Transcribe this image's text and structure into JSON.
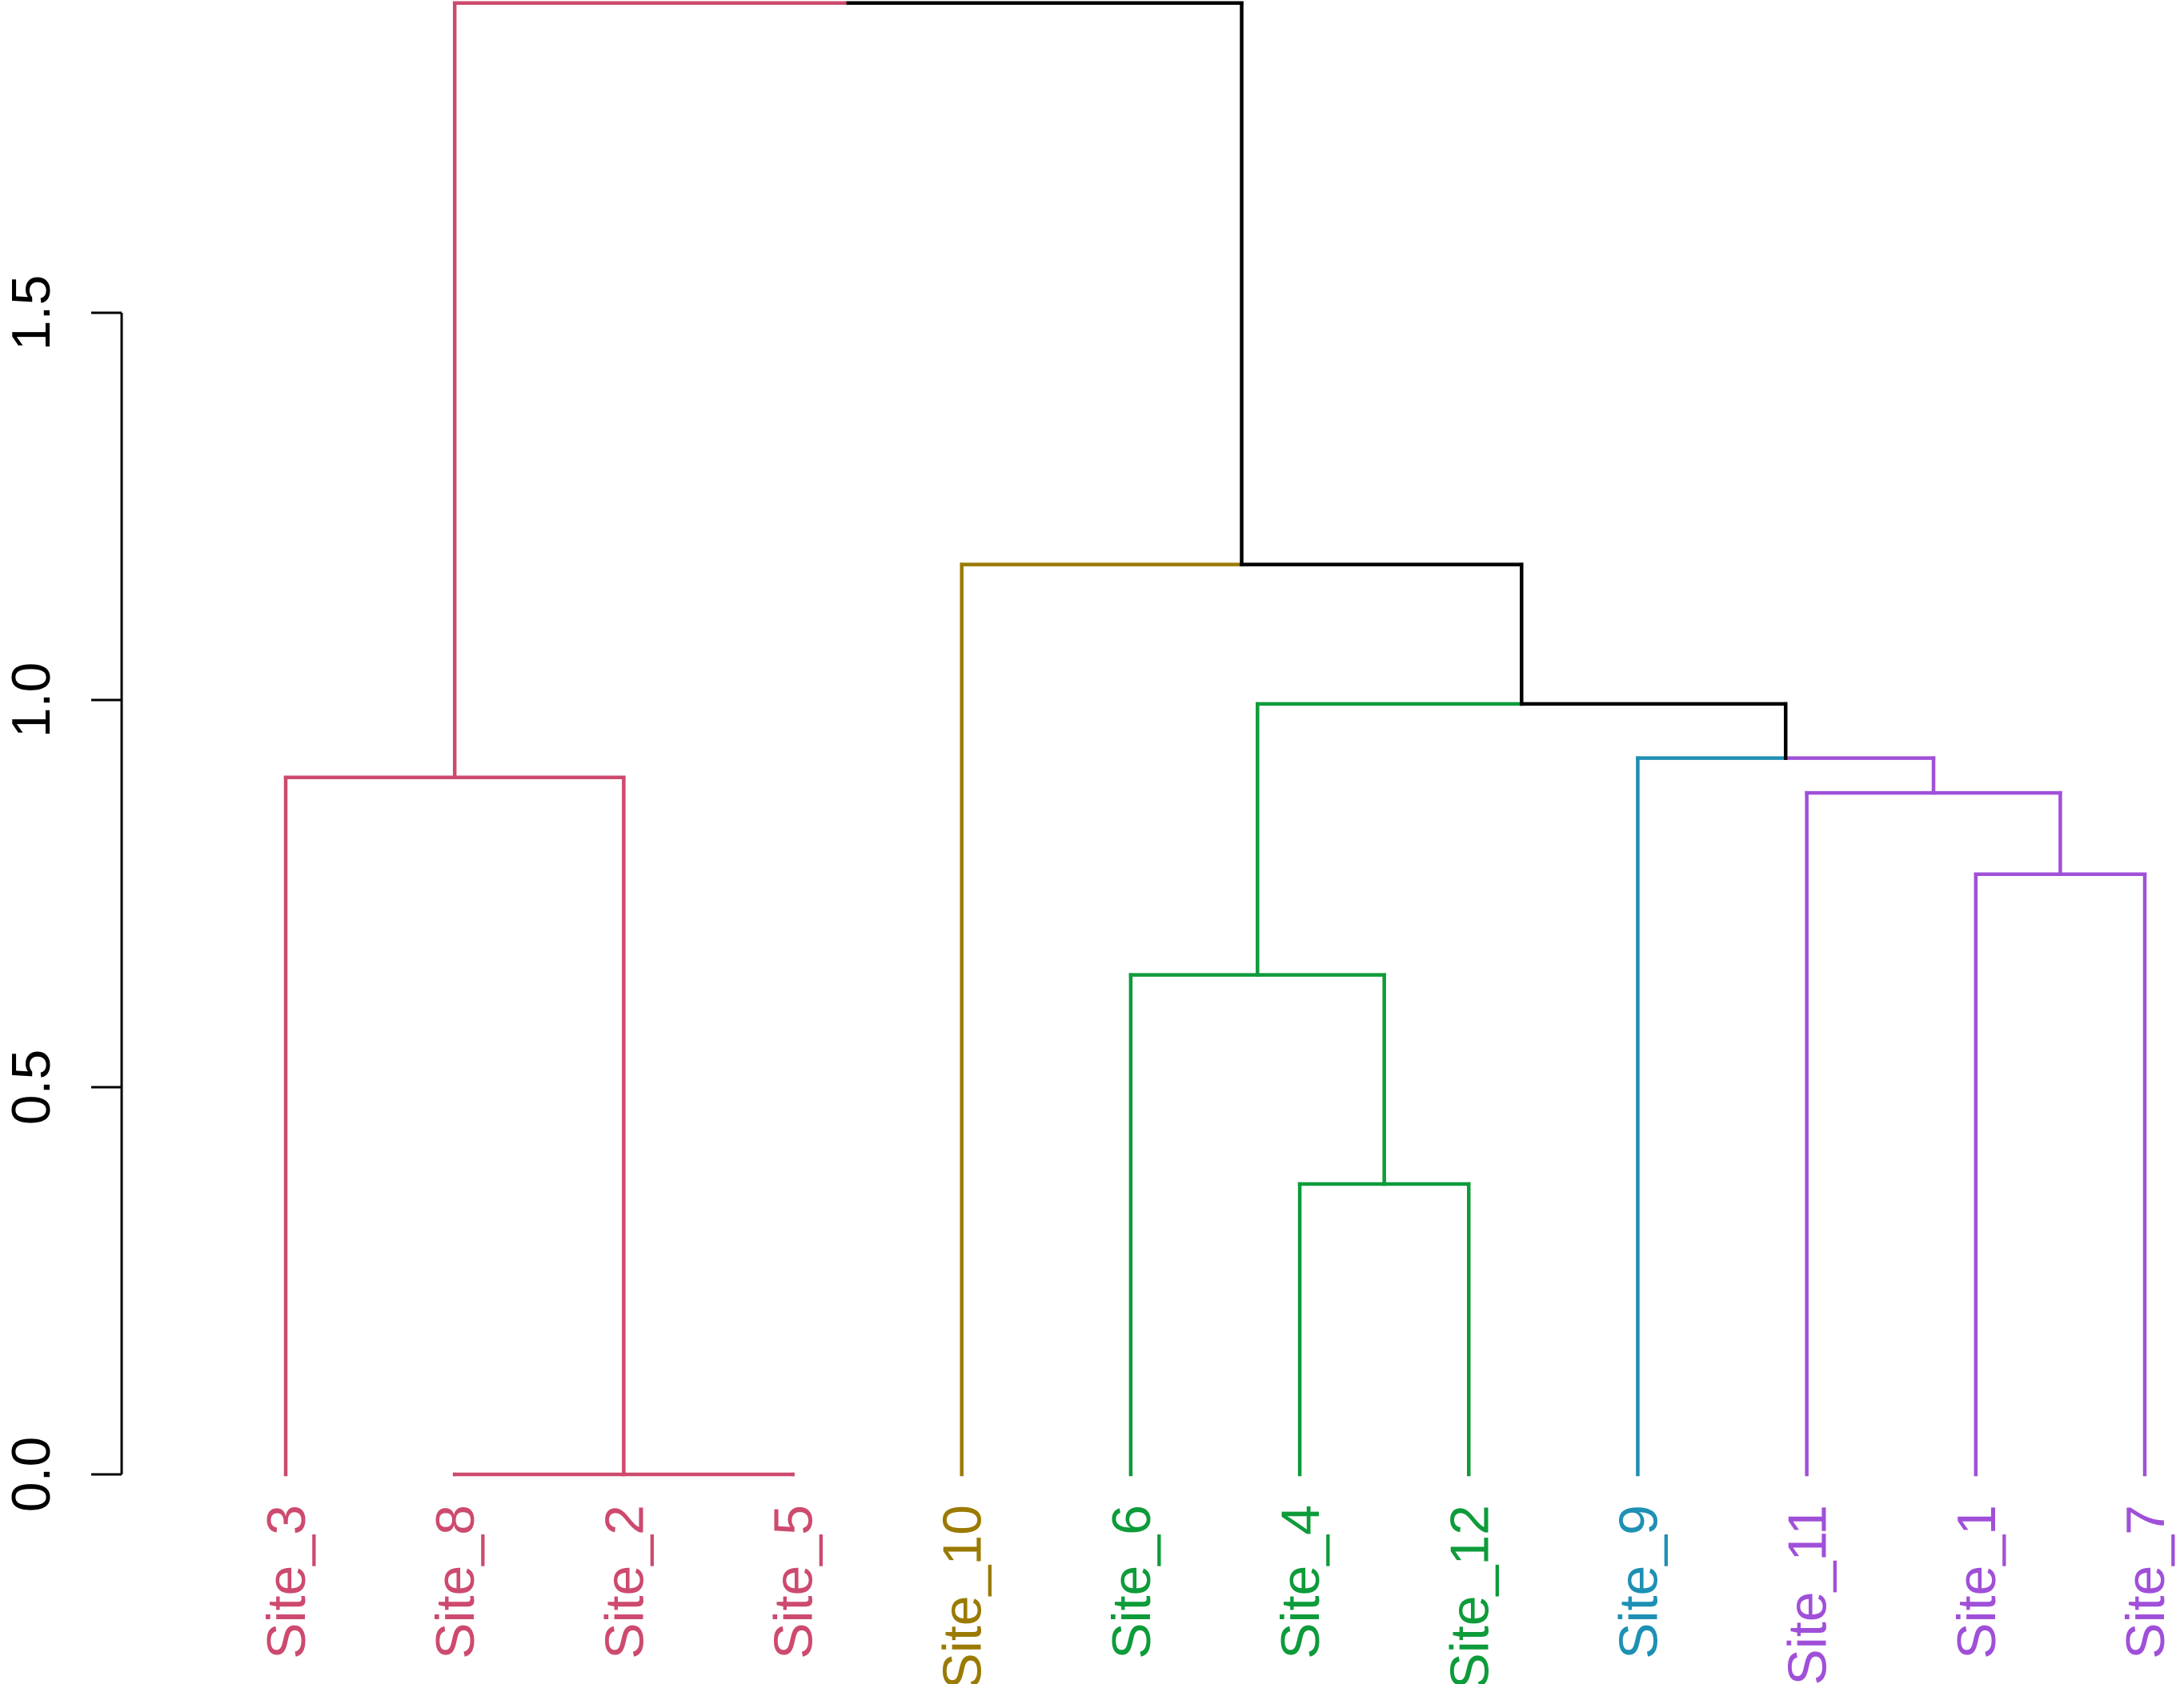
{
  "chart_data": {
    "type": "dendrogram",
    "title": "",
    "xlabel": "",
    "ylabel": "",
    "ylim": [
      0,
      1.9
    ],
    "yticks": [
      0.0,
      0.5,
      1.0,
      1.5
    ],
    "ytick_labels": [
      "0.0",
      "0.5",
      "1.0",
      "1.5"
    ],
    "grid": false,
    "leaves": [
      {
        "label": "Site_3",
        "color": "#CD4A6E"
      },
      {
        "label": "Site_8",
        "color": "#CD4A6E"
      },
      {
        "label": "Site_2",
        "color": "#CD4A6E"
      },
      {
        "label": "Site_5",
        "color": "#CD4A6E"
      },
      {
        "label": "Site_10",
        "color": "#9A7A00"
      },
      {
        "label": "Site_6",
        "color": "#0E9B3A"
      },
      {
        "label": "Site_4",
        "color": "#0E9B3A"
      },
      {
        "label": "Site_12",
        "color": "#0E9B3A"
      },
      {
        "label": "Site_9",
        "color": "#1E90B4"
      },
      {
        "label": "Site_11",
        "color": "#A050D8"
      },
      {
        "label": "Site_1",
        "color": "#A050D8"
      },
      {
        "label": "Site_7",
        "color": "#A050D8"
      }
    ],
    "merges": [
      {
        "id": "m258",
        "left": "Site_8",
        "right": "Site_5",
        "height": 0.0,
        "color": "#CD4A6E"
      },
      {
        "id": "m3258",
        "left": "Site_3",
        "right": "m258",
        "height": 0.9,
        "color": "#CD4A6E"
      },
      {
        "id": "m412",
        "left": "Site_4",
        "right": "Site_12",
        "height": 0.375,
        "color": "#0E9B3A"
      },
      {
        "id": "m6412",
        "left": "Site_6",
        "right": "m412",
        "height": 0.645,
        "color": "#0E9B3A"
      },
      {
        "id": "m17",
        "left": "Site_1",
        "right": "Site_7",
        "height": 0.775,
        "color": "#A050D8"
      },
      {
        "id": "m1117",
        "left": "Site_11",
        "right": "m17",
        "height": 0.88,
        "color": "#A050D8"
      },
      {
        "id": "m9p",
        "left": "Site_9",
        "right": "m1117",
        "height": 0.925,
        "color": "#1E90B4",
        "right_color": "#A050D8"
      },
      {
        "id": "mgp",
        "left": "m6412",
        "right": "m9p",
        "height": 0.995,
        "color": "#0E9B3A",
        "right_color": "#000000"
      },
      {
        "id": "mrest",
        "left": "Site_10",
        "right": "mgp",
        "height": 1.175,
        "color": "#9A7A00",
        "right_color": "#000000"
      },
      {
        "id": "mroot",
        "left": "m3258",
        "right": "mrest",
        "height": 1.9,
        "color": "#CD4A6E",
        "right_color": "#000000"
      }
    ]
  }
}
